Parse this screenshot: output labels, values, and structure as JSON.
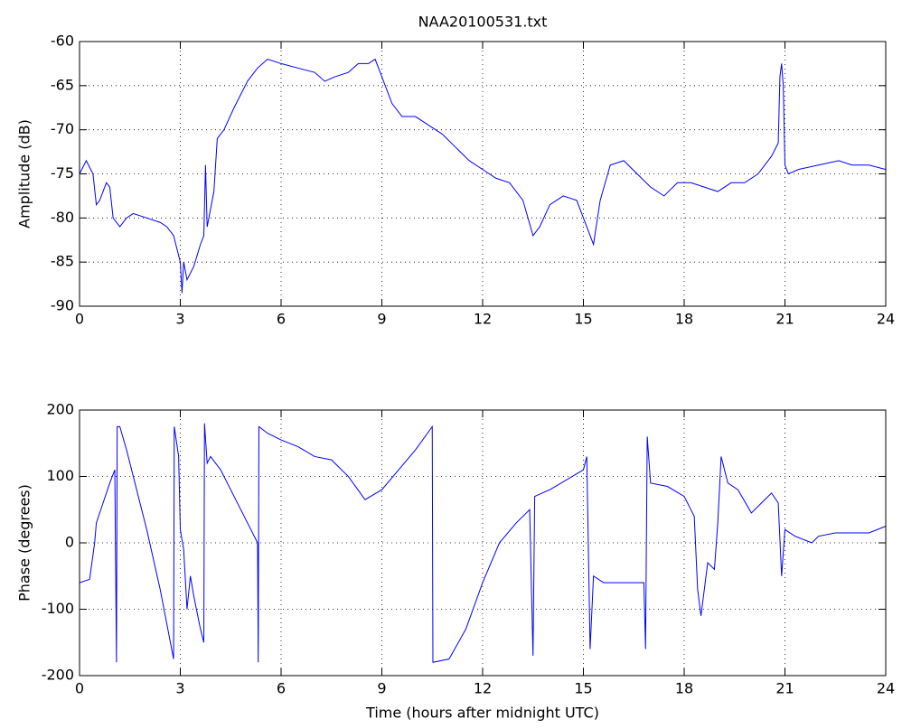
{
  "chart_data": [
    {
      "type": "line",
      "title": "NAA20100531.txt",
      "ylabel": "Amplitude (dB)",
      "color": "#0000ff",
      "grid": true,
      "xlim": [
        0,
        24
      ],
      "xticks": [
        0,
        3,
        6,
        9,
        12,
        15,
        18,
        21,
        24
      ],
      "ylim": [
        -90,
        -60
      ],
      "yticks": [
        -90,
        -85,
        -80,
        -75,
        -70,
        -65,
        -60
      ],
      "x": [
        0,
        0.2,
        0.4,
        0.5,
        0.6,
        0.8,
        0.9,
        1.0,
        1.2,
        1.4,
        1.6,
        2.0,
        2.4,
        2.6,
        2.8,
        3.0,
        3.05,
        3.1,
        3.2,
        3.4,
        3.6,
        3.7,
        3.75,
        3.8,
        3.9,
        4.0,
        4.1,
        4.3,
        4.6,
        5.0,
        5.3,
        5.6,
        6.0,
        6.5,
        7.0,
        7.3,
        7.6,
        8.0,
        8.3,
        8.6,
        8.8,
        9.0,
        9.3,
        9.6,
        10.0,
        10.4,
        10.8,
        11.2,
        11.6,
        12.0,
        12.4,
        12.8,
        13.2,
        13.5,
        13.7,
        14.0,
        14.4,
        14.8,
        15.1,
        15.3,
        15.5,
        15.8,
        16.2,
        16.6,
        17.0,
        17.4,
        17.8,
        18.2,
        18.6,
        19.0,
        19.4,
        19.8,
        20.2,
        20.6,
        20.8,
        20.85,
        20.9,
        20.95,
        21.0,
        21.1,
        21.4,
        22.0,
        22.6,
        23.0,
        23.5,
        24.0
      ],
      "values": [
        -75,
        -73.5,
        -75,
        -78.5,
        -78,
        -76,
        -76.5,
        -80,
        -81,
        -80,
        -79.5,
        -80,
        -80.5,
        -81,
        -82,
        -85,
        -88.5,
        -85,
        -87,
        -85.5,
        -83,
        -82,
        -74,
        -81,
        -79,
        -77,
        -71,
        -70,
        -67.5,
        -64.5,
        -63,
        -62,
        -62.5,
        -63,
        -63.5,
        -64.5,
        -64,
        -63.5,
        -62.5,
        -62.5,
        -62,
        -64,
        -67,
        -68.5,
        -68.5,
        -69.5,
        -70.5,
        -72,
        -73.5,
        -74.5,
        -75.5,
        -76,
        -78,
        -82,
        -81,
        -78.5,
        -77.5,
        -78,
        -81,
        -83,
        -78,
        -74,
        -73.5,
        -75,
        -76.5,
        -77.5,
        -76,
        -76,
        -76.5,
        -77,
        -76,
        -76,
        -75,
        -73,
        -71.5,
        -64,
        -62.5,
        -65,
        -74,
        -75,
        -74.5,
        -74,
        -73.5,
        -74,
        -74,
        -74.5
      ]
    },
    {
      "type": "line",
      "xlabel": "Time (hours after midnight UTC)",
      "ylabel": "Phase (degrees)",
      "color": "#0000ff",
      "grid": true,
      "xlim": [
        0,
        24
      ],
      "xticks": [
        0,
        3,
        6,
        9,
        12,
        15,
        18,
        21,
        24
      ],
      "ylim": [
        -200,
        200
      ],
      "yticks": [
        -200,
        -100,
        0,
        100,
        200
      ],
      "x": [
        0,
        0.3,
        0.45,
        0.5,
        0.7,
        0.9,
        1.05,
        1.1,
        1.12,
        1.2,
        1.4,
        1.6,
        2.0,
        2.4,
        2.8,
        2.82,
        2.95,
        3.0,
        3.1,
        3.2,
        3.3,
        3.4,
        3.6,
        3.7,
        3.72,
        3.8,
        3.9,
        4.2,
        4.6,
        5.0,
        5.3,
        5.32,
        5.34,
        5.6,
        6.0,
        6.5,
        7.0,
        7.5,
        8.0,
        8.5,
        9.0,
        9.5,
        10.0,
        10.5,
        10.52,
        11.0,
        11.5,
        12.0,
        12.5,
        13.0,
        13.4,
        13.5,
        13.55,
        14.0,
        14.5,
        15.0,
        15.1,
        15.2,
        15.3,
        15.6,
        16.0,
        16.5,
        16.8,
        16.85,
        16.9,
        17.0,
        17.5,
        18.0,
        18.3,
        18.4,
        18.5,
        18.7,
        18.9,
        19.0,
        19.1,
        19.3,
        19.6,
        20.0,
        20.3,
        20.6,
        20.8,
        20.9,
        21.0,
        21.3,
        21.8,
        22.0,
        22.5,
        23.0,
        23.5,
        24.0
      ],
      "values": [
        -60,
        -55,
        0,
        30,
        60,
        90,
        110,
        -180,
        175,
        175,
        140,
        100,
        20,
        -70,
        -175,
        175,
        130,
        20,
        -10,
        -100,
        -50,
        -80,
        -130,
        -150,
        180,
        120,
        130,
        110,
        70,
        30,
        0,
        -180,
        175,
        165,
        155,
        145,
        130,
        125,
        100,
        65,
        80,
        110,
        140,
        175,
        -180,
        -175,
        -130,
        -60,
        0,
        30,
        50,
        -170,
        70,
        80,
        95,
        110,
        130,
        -160,
        -50,
        -60,
        -60,
        -60,
        -60,
        -160,
        160,
        90,
        85,
        70,
        40,
        -70,
        -110,
        -30,
        -40,
        30,
        130,
        90,
        80,
        45,
        60,
        75,
        60,
        -50,
        20,
        10,
        0,
        10,
        15,
        15,
        15,
        25
      ]
    }
  ]
}
